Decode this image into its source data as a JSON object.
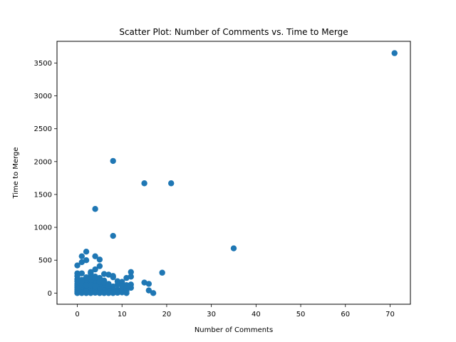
{
  "chart_data": {
    "type": "scatter",
    "title": "Scatter Plot: Number of Comments vs. Time to Merge",
    "xlabel": "Number of Comments",
    "ylabel": "Time to Merge",
    "xlim": [
      -4.55,
      74.55
    ],
    "ylim": [
      -170,
      3830
    ],
    "xticks": [
      0,
      10,
      20,
      30,
      40,
      50,
      60,
      70
    ],
    "yticks": [
      0,
      500,
      1000,
      1500,
      2000,
      2500,
      3000,
      3500
    ],
    "grid": false,
    "marker_color": "#1f77b4",
    "points": [
      [
        71,
        3650
      ],
      [
        8,
        2010
      ],
      [
        15,
        1670
      ],
      [
        21,
        1670
      ],
      [
        4,
        1280
      ],
      [
        8,
        870
      ],
      [
        35,
        680
      ],
      [
        2,
        630
      ],
      [
        1,
        560
      ],
      [
        4,
        560
      ],
      [
        5,
        510
      ],
      [
        2,
        500
      ],
      [
        1,
        470
      ],
      [
        0,
        420
      ],
      [
        5,
        410
      ],
      [
        4,
        360
      ],
      [
        3,
        320
      ],
      [
        12,
        320
      ],
      [
        19,
        310
      ],
      [
        0,
        300
      ],
      [
        1,
        300
      ],
      [
        6,
        290
      ],
      [
        7,
        280
      ],
      [
        8,
        260
      ],
      [
        8,
        240
      ],
      [
        11,
        230
      ],
      [
        12,
        250
      ],
      [
        3,
        260
      ],
      [
        2,
        240
      ],
      [
        5,
        230
      ],
      [
        0,
        210
      ],
      [
        1,
        200
      ],
      [
        2,
        190
      ],
      [
        3,
        210
      ],
      [
        4,
        200
      ],
      [
        6,
        190
      ],
      [
        9,
        180
      ],
      [
        10,
        170
      ],
      [
        15,
        160
      ],
      [
        16,
        140
      ],
      [
        12,
        130
      ],
      [
        11,
        120
      ],
      [
        10,
        110
      ],
      [
        9,
        130
      ],
      [
        8,
        100
      ],
      [
        7,
        110
      ],
      [
        6,
        120
      ],
      [
        5,
        140
      ],
      [
        4,
        150
      ],
      [
        3,
        160
      ],
      [
        2,
        150
      ],
      [
        1,
        130
      ],
      [
        0,
        140
      ],
      [
        0,
        110
      ],
      [
        1,
        100
      ],
      [
        2,
        90
      ],
      [
        3,
        80
      ],
      [
        4,
        90
      ],
      [
        5,
        100
      ],
      [
        6,
        80
      ],
      [
        7,
        70
      ],
      [
        8,
        60
      ],
      [
        9,
        50
      ],
      [
        10,
        60
      ],
      [
        11,
        70
      ],
      [
        12,
        80
      ],
      [
        0,
        80
      ],
      [
        1,
        70
      ],
      [
        2,
        60
      ],
      [
        3,
        50
      ],
      [
        4,
        60
      ],
      [
        5,
        50
      ],
      [
        6,
        40
      ],
      [
        7,
        30
      ],
      [
        8,
        40
      ],
      [
        9,
        30
      ],
      [
        10,
        20
      ],
      [
        11,
        30
      ],
      [
        0,
        50
      ],
      [
        1,
        40
      ],
      [
        2,
        30
      ],
      [
        3,
        20
      ],
      [
        4,
        30
      ],
      [
        5,
        20
      ],
      [
        6,
        10
      ],
      [
        7,
        15
      ],
      [
        8,
        10
      ],
      [
        9,
        5
      ],
      [
        10,
        10
      ],
      [
        11,
        0
      ],
      [
        16,
        40
      ],
      [
        17,
        0
      ],
      [
        0,
        20
      ],
      [
        1,
        10
      ],
      [
        2,
        5
      ],
      [
        3,
        0
      ],
      [
        4,
        5
      ],
      [
        5,
        0
      ],
      [
        6,
        0
      ],
      [
        7,
        0
      ],
      [
        8,
        0
      ],
      [
        0,
        0
      ],
      [
        1,
        0
      ],
      [
        2,
        0
      ],
      [
        0,
        180
      ],
      [
        1,
        180
      ],
      [
        2,
        120
      ],
      [
        3,
        120
      ],
      [
        4,
        110
      ],
      [
        5,
        170
      ],
      [
        6,
        160
      ],
      [
        7,
        140
      ],
      [
        4,
        250
      ],
      [
        3,
        300
      ],
      [
        2,
        20
      ],
      [
        0,
        260
      ]
    ]
  }
}
